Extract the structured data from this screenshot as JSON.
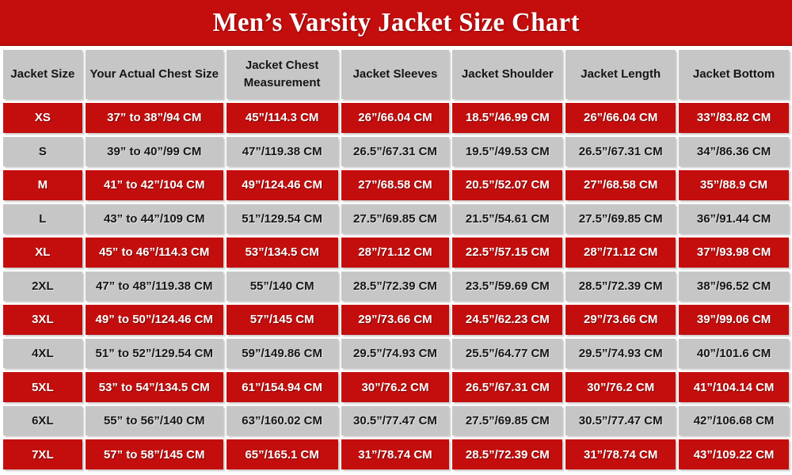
{
  "title_bar": {
    "title": "Men’s Varsity Jacket Size Chart"
  },
  "colors": {
    "red": "#c40e0e",
    "gray": "#c6c6c6",
    "separator": "#ffffff",
    "title_text": "#ffffff",
    "cell_text_dark": "#161616"
  },
  "chart_data": {
    "type": "table",
    "title": "Men’s Varsity Jacket Size Chart",
    "columns": [
      "Jacket Size",
      "Your Actual Chest Size",
      "Jacket Chest Measurement",
      "Jacket Sleeves",
      "Jacket Shoulder",
      "Jacket Length",
      "Jacket Bottom"
    ],
    "rows": [
      {
        "variant": "red",
        "cells": [
          "XS",
          "37” to 38”/94 CM",
          "45”/114.3 CM",
          "26”/66.04 CM",
          "18.5”/46.99 CM",
          "26”/66.04 CM",
          "33”/83.82 CM"
        ]
      },
      {
        "variant": "gray",
        "cells": [
          "S",
          "39” to 40”/99 CM",
          "47”/119.38 CM",
          "26.5”/67.31 CM",
          "19.5”/49.53 CM",
          "26.5”/67.31 CM",
          "34”/86.36 CM"
        ]
      },
      {
        "variant": "red",
        "cells": [
          "M",
          "41” to 42”/104 CM",
          "49”/124.46 CM",
          "27”/68.58 CM",
          "20.5”/52.07 CM",
          "27”/68.58 CM",
          "35”/88.9 CM"
        ]
      },
      {
        "variant": "gray",
        "cells": [
          "L",
          "43” to 44”/109 CM",
          "51”/129.54 CM",
          "27.5”/69.85 CM",
          "21.5”/54.61 CM",
          "27.5”/69.85 CM",
          "36”/91.44 CM"
        ]
      },
      {
        "variant": "red",
        "cells": [
          "XL",
          "45” to 46”/114.3 CM",
          "53”/134.5 CM",
          "28”/71.12 CM",
          "22.5”/57.15 CM",
          "28”/71.12 CM",
          "37”/93.98 CM"
        ]
      },
      {
        "variant": "gray",
        "cells": [
          "2XL",
          "47” to 48”/119.38 CM",
          "55”/140 CM",
          "28.5”/72.39 CM",
          "23.5”/59.69 CM",
          "28.5”/72.39 CM",
          "38”/96.52 CM"
        ]
      },
      {
        "variant": "red",
        "cells": [
          "3XL",
          "49” to 50”/124.46 CM",
          "57”/145 CM",
          "29”/73.66 CM",
          "24.5”/62.23 CM",
          "29”/73.66 CM",
          "39”/99.06 CM"
        ]
      },
      {
        "variant": "gray",
        "cells": [
          "4XL",
          "51” to 52”/129.54 CM",
          "59”/149.86 CM",
          "29.5”/74.93 CM",
          "25.5”/64.77 CM",
          "29.5”/74.93 CM",
          "40”/101.6 CM"
        ]
      },
      {
        "variant": "red",
        "cells": [
          "5XL",
          "53” to 54”/134.5 CM",
          "61”/154.94 CM",
          "30”/76.2 CM",
          "26.5”/67.31 CM",
          "30”/76.2 CM",
          "41”/104.14 CM"
        ]
      },
      {
        "variant": "gray",
        "cells": [
          "6XL",
          "55” to 56”/140 CM",
          "63”/160.02 CM",
          "30.5”/77.47 CM",
          "27.5”/69.85 CM",
          "30.5”/77.47 CM",
          "42”/106.68 CM"
        ]
      },
      {
        "variant": "red",
        "cells": [
          "7XL",
          "57” to 58”/145 CM",
          "65”/165.1 CM",
          "31”/78.74 CM",
          "28.5”/72.39 CM",
          "31”/78.74 CM",
          "43”/109.22 CM"
        ]
      }
    ]
  }
}
